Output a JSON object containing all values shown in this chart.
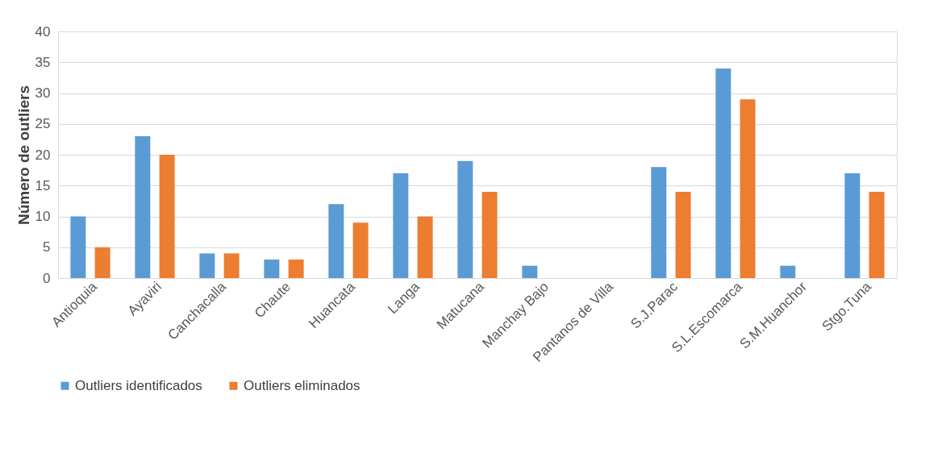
{
  "chart_data": {
    "type": "bar",
    "ylabel": "Número de outliers",
    "categories": [
      "Antioquia",
      "Ayaviri",
      "Canchacalla",
      "Chaute",
      "Huancata",
      "Langa",
      "Matucana",
      "Manchay Bajo",
      "Pantanos de Villa",
      "S.J.Parac",
      "S.L.Escomarca",
      "S.M.Huanchor",
      "Stgo.Tuna"
    ],
    "series": [
      {
        "name": "Outliers identificados",
        "color": "#5b9bd5",
        "values": [
          10,
          23,
          4,
          3,
          12,
          17,
          19,
          2,
          0,
          18,
          34,
          2,
          17
        ]
      },
      {
        "name": "Outliers eliminados",
        "color": "#ed7d31",
        "values": [
          5,
          20,
          4,
          3,
          9,
          10,
          14,
          0,
          0,
          14,
          29,
          0,
          14
        ]
      }
    ],
    "ylim": [
      0,
      40
    ],
    "yticks": [
      0,
      5,
      10,
      15,
      20,
      25,
      30,
      35,
      40
    ],
    "grid": "y",
    "legend": "bottom"
  }
}
